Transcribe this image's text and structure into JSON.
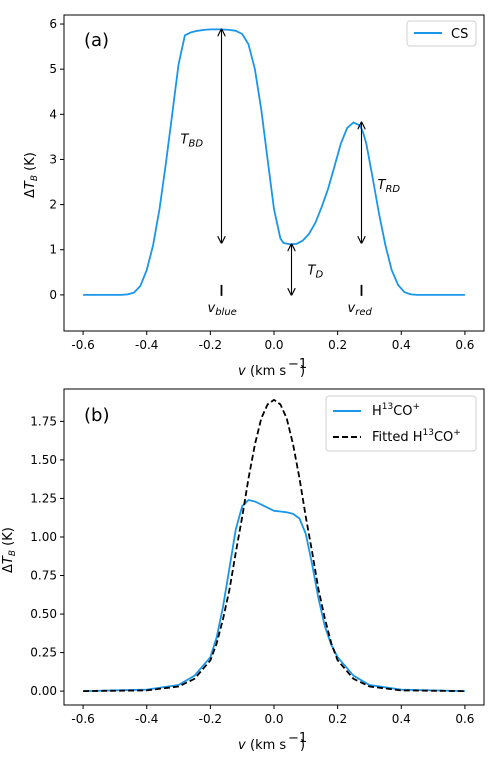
{
  "chart_data": [
    {
      "type": "line",
      "panel_label": "(a)",
      "xlabel": "v (km s⁻¹)",
      "ylabel": "ΔT_B (K)",
      "xlim": [
        -0.66,
        0.66
      ],
      "ylim": [
        -0.8,
        6.2
      ],
      "xticks": [
        -0.6,
        -0.4,
        -0.2,
        0.0,
        0.2,
        0.4,
        0.6
      ],
      "xtick_labels": [
        "-0.6",
        "-0.4",
        "-0.2",
        "0.0",
        "0.2",
        "0.4",
        "0.6"
      ],
      "yticks": [
        0,
        1,
        2,
        3,
        4,
        5,
        6
      ],
      "ytick_labels": [
        "0",
        "1",
        "2",
        "3",
        "4",
        "5",
        "6"
      ],
      "legend_position": "top-right",
      "grid": false,
      "series": [
        {
          "name": "CS",
          "color": "#1a96e8",
          "style": "solid",
          "x": [
            -0.6,
            -0.48,
            -0.46,
            -0.44,
            -0.42,
            -0.4,
            -0.38,
            -0.36,
            -0.34,
            -0.32,
            -0.3,
            -0.28,
            -0.26,
            -0.24,
            -0.22,
            -0.2,
            -0.17,
            -0.14,
            -0.12,
            -0.1,
            -0.08,
            -0.06,
            -0.04,
            -0.02,
            0.0,
            0.02,
            0.03,
            0.05,
            0.07,
            0.09,
            0.11,
            0.13,
            0.15,
            0.17,
            0.19,
            0.21,
            0.23,
            0.25,
            0.27,
            0.28,
            0.29,
            0.31,
            0.33,
            0.35,
            0.37,
            0.39,
            0.41,
            0.43,
            0.45,
            0.6
          ],
          "y": [
            0,
            0,
            0.01,
            0.05,
            0.2,
            0.55,
            1.1,
            1.9,
            2.9,
            4.0,
            5.1,
            5.75,
            5.82,
            5.85,
            5.87,
            5.88,
            5.88,
            5.87,
            5.85,
            5.78,
            5.55,
            5.0,
            4.1,
            3.0,
            1.9,
            1.25,
            1.15,
            1.12,
            1.13,
            1.2,
            1.35,
            1.6,
            1.95,
            2.35,
            2.85,
            3.35,
            3.7,
            3.82,
            3.75,
            3.6,
            3.35,
            2.6,
            1.8,
            1.1,
            0.55,
            0.22,
            0.06,
            0.01,
            0,
            0
          ]
        }
      ],
      "annotations": [
        {
          "label": "T",
          "sub": "BD",
          "x": -0.165,
          "y_from": 1.15,
          "y_to": 5.88
        },
        {
          "label": "T",
          "sub": "D",
          "x": 0.055,
          "y_from": 0.0,
          "y_to": 1.12
        },
        {
          "label": "T",
          "sub": "RD",
          "x": 0.275,
          "y_from": 1.15,
          "y_to": 3.82
        },
        {
          "label": "v",
          "sub": "blue",
          "x": -0.165
        },
        {
          "label": "v",
          "sub": "red",
          "x": 0.275
        }
      ]
    },
    {
      "type": "line",
      "panel_label": "(b)",
      "xlabel": "v (km s⁻¹)",
      "ylabel": "ΔT_B (K)",
      "xlim": [
        -0.66,
        0.66
      ],
      "ylim": [
        -0.09,
        1.96
      ],
      "xticks": [
        -0.6,
        -0.4,
        -0.2,
        0.0,
        0.2,
        0.4,
        0.6
      ],
      "xtick_labels": [
        "-0.6",
        "-0.4",
        "-0.2",
        "0.0",
        "0.2",
        "0.4",
        "0.6"
      ],
      "yticks": [
        0,
        0.25,
        0.5,
        0.75,
        1.0,
        1.25,
        1.5,
        1.75
      ],
      "ytick_labels": [
        "0.00",
        "0.25",
        "0.50",
        "0.75",
        "1.00",
        "1.25",
        "1.50",
        "1.75"
      ],
      "legend_position": "top-right",
      "grid": false,
      "series": [
        {
          "name": "H13CO+",
          "color": "#1a96e8",
          "style": "solid",
          "x": [
            -0.6,
            -0.4,
            -0.3,
            -0.25,
            -0.2,
            -0.18,
            -0.16,
            -0.14,
            -0.12,
            -0.1,
            -0.08,
            -0.06,
            -0.04,
            -0.02,
            0.0,
            0.02,
            0.04,
            0.06,
            0.08,
            0.1,
            0.12,
            0.14,
            0.16,
            0.18,
            0.2,
            0.25,
            0.3,
            0.4,
            0.6
          ],
          "y": [
            0,
            0.01,
            0.04,
            0.1,
            0.22,
            0.35,
            0.55,
            0.8,
            1.05,
            1.2,
            1.24,
            1.23,
            1.21,
            1.19,
            1.17,
            1.165,
            1.16,
            1.15,
            1.12,
            1.02,
            0.82,
            0.6,
            0.42,
            0.3,
            0.22,
            0.1,
            0.04,
            0.01,
            0
          ]
        },
        {
          "name": "Fitted H13CO+",
          "color": "#000000",
          "style": "dashed",
          "x": [
            -0.6,
            -0.4,
            -0.3,
            -0.25,
            -0.2,
            -0.18,
            -0.16,
            -0.14,
            -0.12,
            -0.1,
            -0.08,
            -0.06,
            -0.04,
            -0.02,
            0.0,
            0.02,
            0.04,
            0.06,
            0.08,
            0.1,
            0.12,
            0.14,
            0.16,
            0.18,
            0.2,
            0.25,
            0.3,
            0.4,
            0.6
          ],
          "y": [
            0,
            0.005,
            0.03,
            0.08,
            0.2,
            0.31,
            0.47,
            0.66,
            0.9,
            1.13,
            1.38,
            1.6,
            1.77,
            1.86,
            1.89,
            1.86,
            1.77,
            1.6,
            1.38,
            1.13,
            0.9,
            0.66,
            0.47,
            0.31,
            0.2,
            0.08,
            0.03,
            0.005,
            0
          ]
        }
      ]
    }
  ]
}
